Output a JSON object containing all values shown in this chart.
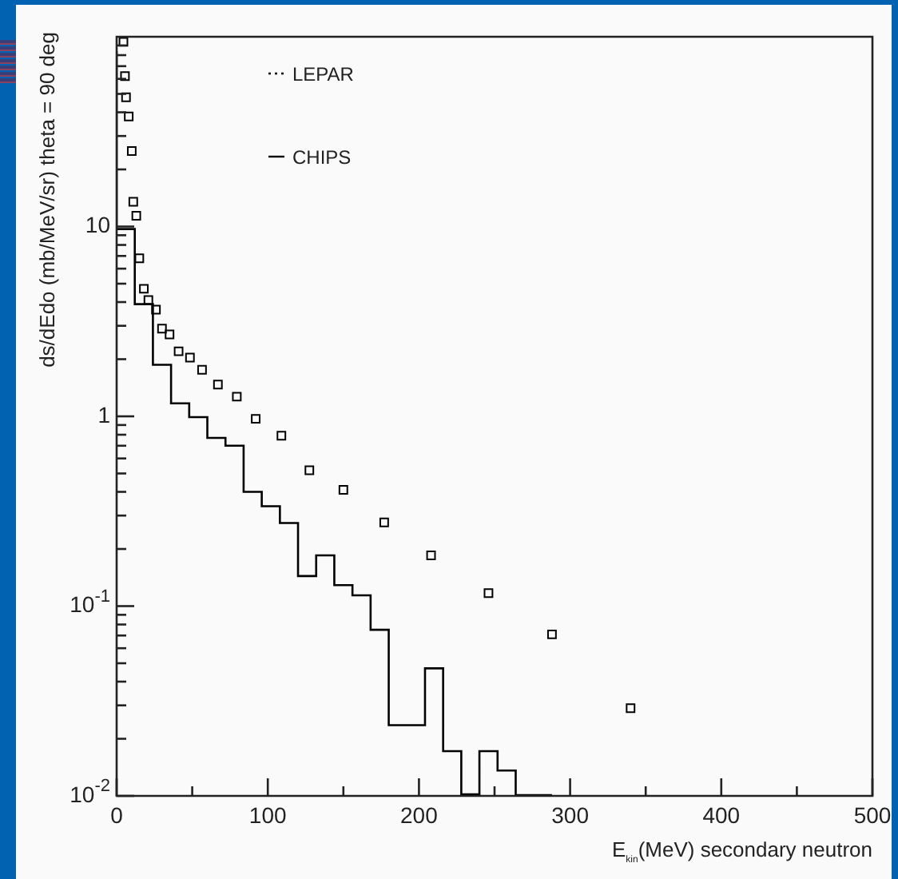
{
  "chart_data": {
    "type": "scatter",
    "xlabel": "E$_{kin}$(MeV) secondary neutron",
    "ylabel": "ds/dEdo (mb/MeV/sr) theta = 90 deg",
    "log": "y",
    "xlim": [
      0,
      500
    ],
    "ylim": [
      0.01,
      100
    ],
    "xticks": [
      0,
      {
        "value": 50,
        "label": null
      },
      100,
      {
        "value": 150,
        "label": null
      },
      200,
      {
        "value": 250,
        "label": null
      },
      300,
      {
        "value": 350,
        "label": null
      },
      400,
      {
        "value": 450,
        "label": null
      },
      500
    ],
    "yticks": [
      {
        "value": 0.01,
        "label": "10$^{-2}$"
      },
      {
        "value": 0.02,
        "label": null
      },
      {
        "value": 0.03,
        "label": null
      },
      {
        "value": 0.04,
        "label": null
      },
      {
        "value": 0.05,
        "label": null
      },
      {
        "value": 0.06,
        "label": null
      },
      {
        "value": 0.07,
        "label": null
      },
      {
        "value": 0.08,
        "label": null
      },
      {
        "value": 0.09,
        "label": null
      },
      {
        "value": 0.1,
        "label": "10$^{-1}$"
      },
      {
        "value": 0.2,
        "label": null
      },
      {
        "value": 0.3,
        "label": null
      },
      {
        "value": 0.4,
        "label": null
      },
      {
        "value": 0.5,
        "label": null
      },
      {
        "value": 0.6,
        "label": null
      },
      {
        "value": 0.7,
        "label": null
      },
      {
        "value": 0.8,
        "label": null
      },
      {
        "value": 0.9,
        "label": null
      },
      1,
      {
        "value": 2,
        "label": null
      },
      {
        "value": 3,
        "label": null
      },
      {
        "value": 4,
        "label": null
      },
      {
        "value": 5,
        "label": null
      },
      {
        "value": 6,
        "label": null
      },
      {
        "value": 7,
        "label": null
      },
      {
        "value": 8,
        "label": null
      },
      {
        "value": 9,
        "label": null
      },
      10,
      {
        "value": 20,
        "label": null
      },
      {
        "value": 30,
        "label": null
      },
      {
        "value": 40,
        "label": null
      },
      {
        "value": 50,
        "label": null
      },
      {
        "value": 60,
        "label": null
      },
      {
        "value": 70,
        "label": null
      },
      {
        "value": 80,
        "label": null
      },
      {
        "value": 90,
        "label": null
      }
    ],
    "grid": false,
    "legend": "top left",
    "series": [
      {
        "name": "LEPAR",
        "color": "#000000",
        "line_style": "dotted",
        "marker": "square",
        "x": [
          4.5,
          5.5,
          6.2,
          8,
          10,
          11,
          13,
          15,
          18,
          21,
          26,
          30,
          35,
          41,
          48.5,
          56.5,
          67,
          79.5,
          92,
          109,
          127.5,
          150,
          177,
          208,
          246,
          288,
          340
        ],
        "values": [
          94,
          62,
          48,
          38,
          25,
          13.5,
          11.4,
          6.8,
          4.7,
          4.1,
          3.65,
          2.9,
          2.7,
          2.2,
          2.04,
          1.76,
          1.47,
          1.27,
          0.97,
          0.79,
          0.52,
          0.41,
          0.276,
          0.185,
          0.117,
          0.071,
          0.029
        ]
      },
      {
        "name": "CHIPS",
        "type": "step",
        "color": "#000000",
        "line_style": "solid",
        "x": [
          0,
          12,
          24,
          36,
          48,
          60,
          72,
          84,
          96,
          108,
          120,
          132,
          144,
          156,
          168,
          180,
          192,
          204,
          216,
          228,
          240,
          252,
          264,
          276,
          288
        ],
        "values": [
          84,
          9.7,
          3.9,
          1.87,
          1.17,
          0.99,
          0.77,
          0.7,
          0.4,
          0.336,
          0.274,
          0.144,
          0.185,
          0.129,
          0.114,
          0.075,
          0.0236,
          0.0236,
          0.047,
          0.0172,
          0.0102,
          0.0172,
          0.0136,
          0.0101,
          0.0101
        ]
      }
    ]
  }
}
